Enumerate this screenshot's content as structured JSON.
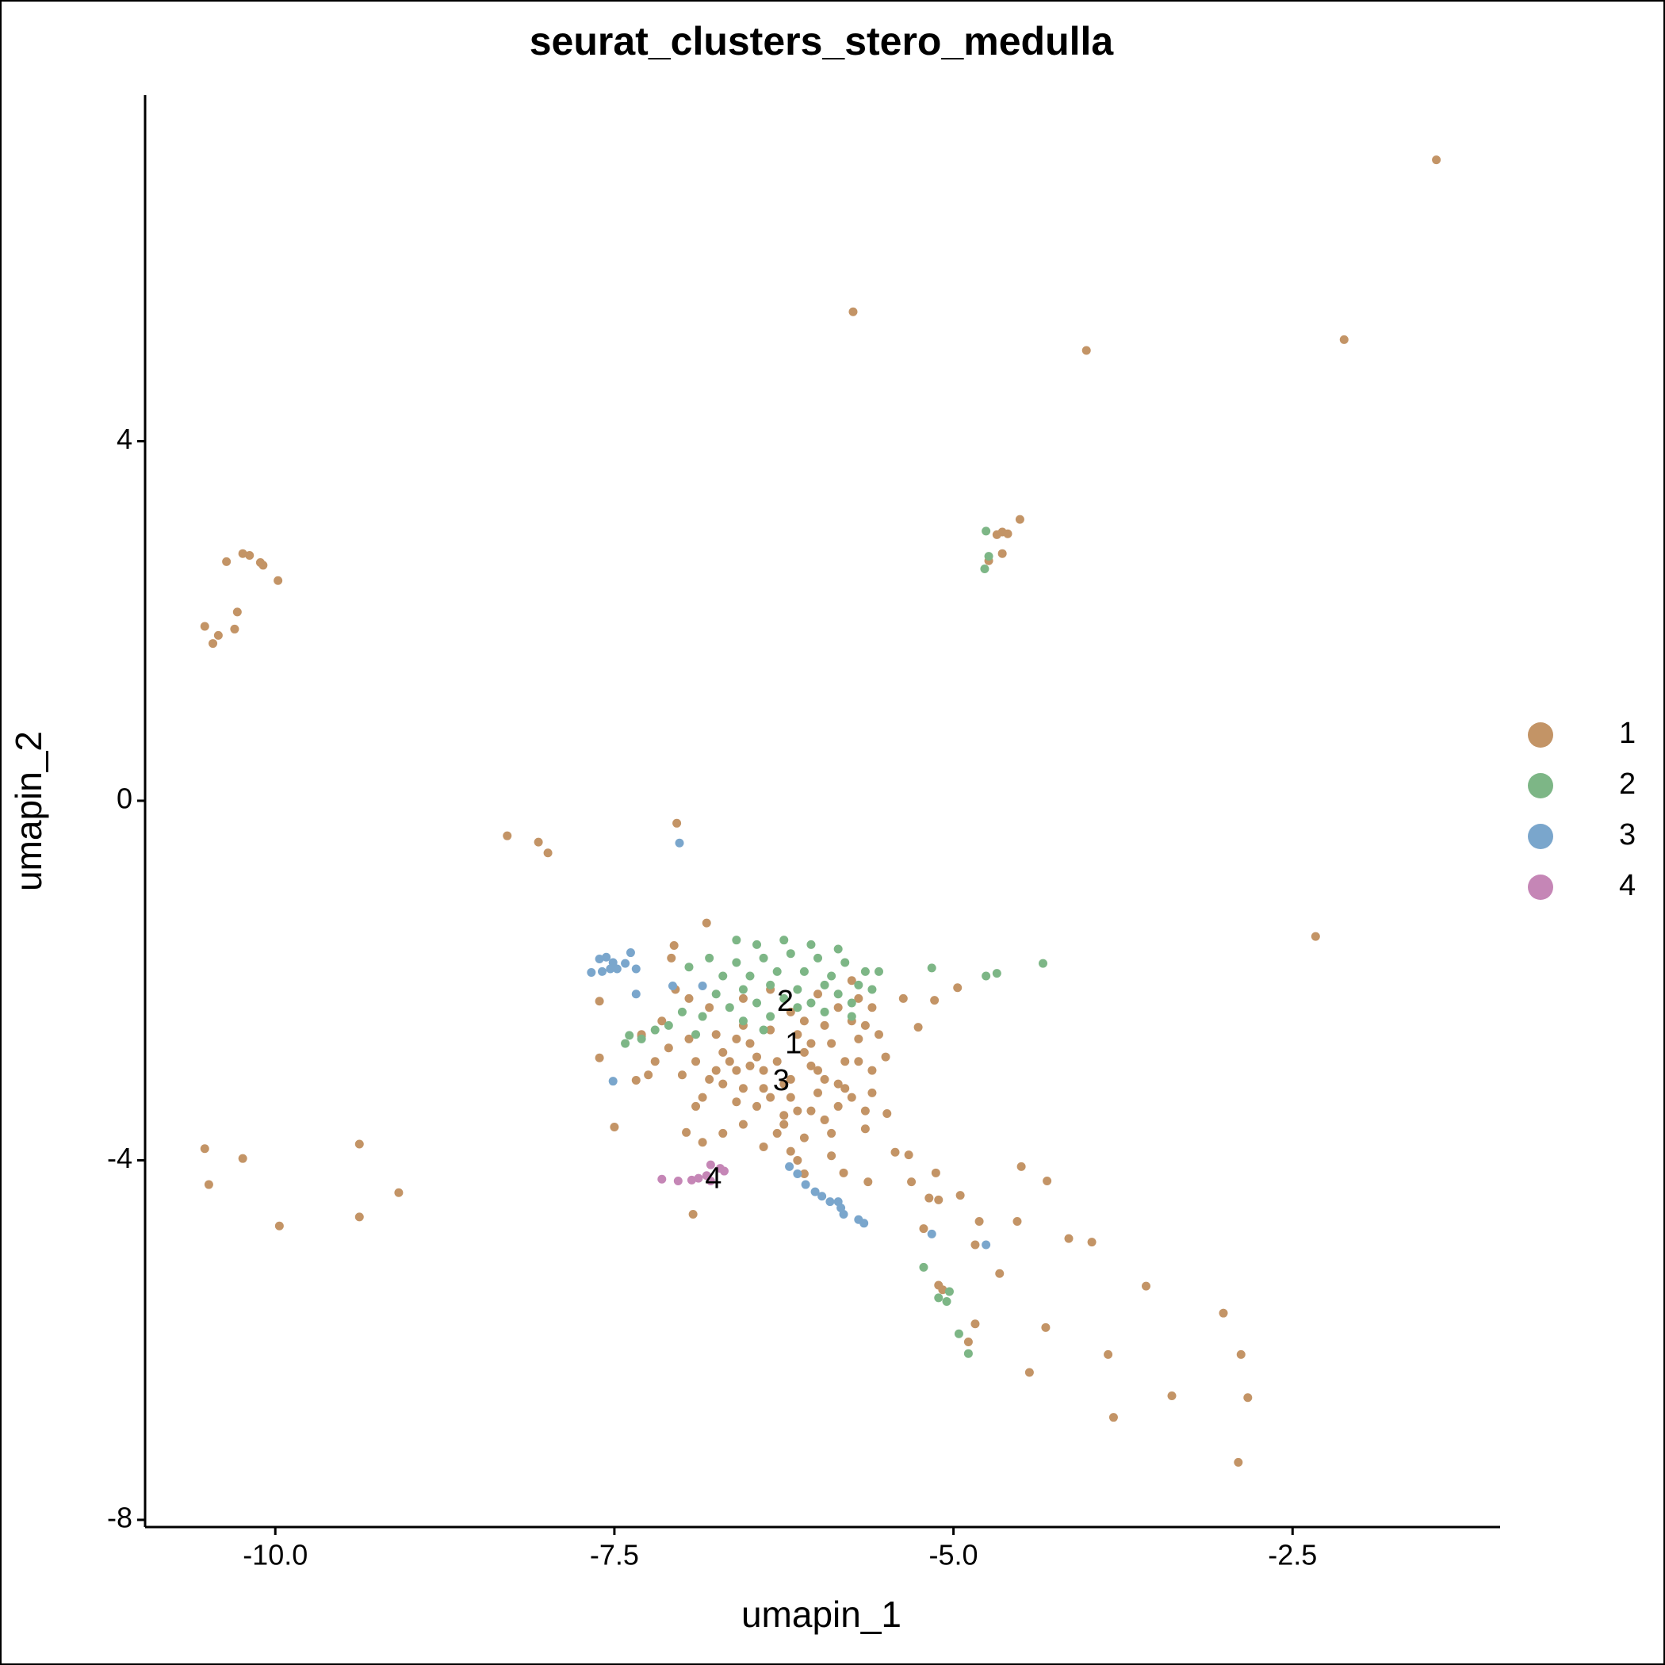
{
  "chart_data": {
    "type": "scatter",
    "title": "seurat_clusters_stero_medulla",
    "xlabel": "umapin_1",
    "ylabel": "umapin_2",
    "xlim": [
      -10.96,
      -0.97
    ],
    "ylim": [
      -8.08,
      7.85
    ],
    "xticks": [
      {
        "value": -10,
        "label": "-10.0"
      },
      -7.5,
      {
        "value": -5,
        "label": "-5.0"
      },
      -2.5
    ],
    "yticks": [
      -8,
      -4,
      0,
      4
    ],
    "legend": "right",
    "labels": [
      {
        "text": "2",
        "x": -6.24,
        "y": -2.25
      },
      {
        "text": "1",
        "x": -6.18,
        "y": -2.72
      },
      {
        "text": "3",
        "x": -6.27,
        "y": -3.13
      },
      {
        "text": "4",
        "x": -6.77,
        "y": -4.22
      }
    ],
    "series": [
      {
        "name": "1",
        "color": "#C39466",
        "points": [
          [
            -1.44,
            7.13
          ],
          [
            -5.74,
            5.44
          ],
          [
            -4.02,
            5.01
          ],
          [
            -2.12,
            5.13
          ],
          [
            -4.51,
            3.13
          ],
          [
            -4.64,
            2.99
          ],
          [
            -4.6,
            2.97
          ],
          [
            -4.64,
            2.75
          ],
          [
            -4.74,
            2.67
          ],
          [
            -4.68,
            2.96
          ],
          [
            -10.36,
            2.66
          ],
          [
            -10.24,
            2.75
          ],
          [
            -10.19,
            2.73
          ],
          [
            -10.11,
            2.65
          ],
          [
            -10.09,
            2.62
          ],
          [
            -9.98,
            2.45
          ],
          [
            -10.28,
            2.1
          ],
          [
            -10.3,
            1.91
          ],
          [
            -10.52,
            1.94
          ],
          [
            -10.42,
            1.84
          ],
          [
            -10.46,
            1.75
          ],
          [
            -8.29,
            -0.39
          ],
          [
            -8.06,
            -0.46
          ],
          [
            -7.99,
            -0.58
          ],
          [
            -7.04,
            -0.25
          ],
          [
            -2.33,
            -1.51
          ],
          [
            -10.52,
            -3.87
          ],
          [
            -10.49,
            -4.27
          ],
          [
            -10.24,
            -3.98
          ],
          [
            -9.38,
            -3.82
          ],
          [
            -9.38,
            -4.63
          ],
          [
            -9.09,
            -4.36
          ],
          [
            -9.97,
            -4.73
          ],
          [
            -5.49,
            -3.48
          ],
          [
            -5.43,
            -3.91
          ],
          [
            -5.33,
            -3.94
          ],
          [
            -5.31,
            -4.24
          ],
          [
            -5.13,
            -4.14
          ],
          [
            -5.18,
            -4.42
          ],
          [
            -5.11,
            -4.44
          ],
          [
            -4.95,
            -4.39
          ],
          [
            -4.5,
            -4.07
          ],
          [
            -4.31,
            -4.23
          ],
          [
            -4.81,
            -4.68
          ],
          [
            -4.53,
            -4.68
          ],
          [
            -5.22,
            -4.76
          ],
          [
            -4.84,
            -4.94
          ],
          [
            -4.66,
            -5.26
          ],
          [
            -4.15,
            -4.87
          ],
          [
            -3.98,
            -4.91
          ],
          [
            -5.11,
            -5.39
          ],
          [
            -5.08,
            -5.44
          ],
          [
            -4.84,
            -5.82
          ],
          [
            -4.89,
            -6.02
          ],
          [
            -4.32,
            -5.86
          ],
          [
            -4.44,
            -6.36
          ],
          [
            -3.58,
            -5.4
          ],
          [
            -3.86,
            -6.16
          ],
          [
            -3.82,
            -6.86
          ],
          [
            -3.39,
            -6.62
          ],
          [
            -3.01,
            -5.7
          ],
          [
            -2.88,
            -6.16
          ],
          [
            -2.83,
            -6.64
          ],
          [
            -2.9,
            -7.36
          ],
          [
            -5.63,
            -4.24
          ],
          [
            -5.81,
            -4.14
          ],
          [
            -6.92,
            -4.6
          ],
          [
            -6.97,
            -3.69
          ],
          [
            -7.5,
            -3.63
          ],
          [
            -7.34,
            -3.11
          ],
          [
            -7.61,
            -2.86
          ],
          [
            -7.61,
            -2.23
          ],
          [
            -7.3,
            -2.62
          ],
          [
            -5.26,
            -2.52
          ],
          [
            -5.37,
            -2.2
          ],
          [
            -5.14,
            -2.22
          ],
          [
            -4.97,
            -2.08
          ],
          [
            -7.06,
            -1.61
          ],
          [
            -6.82,
            -1.36
          ],
          [
            -7.08,
            -1.75
          ],
          [
            -6.9,
            -2.9
          ],
          [
            -6.8,
            -3.1
          ],
          [
            -6.7,
            -2.8
          ],
          [
            -6.6,
            -3.0
          ],
          [
            -6.5,
            -2.7
          ],
          [
            -6.4,
            -3.2
          ],
          [
            -6.3,
            -2.9
          ],
          [
            -6.2,
            -3.1
          ],
          [
            -6.1,
            -2.8
          ],
          [
            -6.0,
            -3.0
          ],
          [
            -5.9,
            -2.7
          ],
          [
            -5.8,
            -3.2
          ],
          [
            -5.7,
            -2.9
          ],
          [
            -5.6,
            -3.0
          ],
          [
            -6.45,
            -3.4
          ],
          [
            -6.25,
            -3.5
          ],
          [
            -6.05,
            -3.45
          ],
          [
            -5.85,
            -3.4
          ],
          [
            -6.35,
            -2.55
          ],
          [
            -6.15,
            -2.6
          ],
          [
            -5.95,
            -2.5
          ],
          [
            -5.75,
            -2.45
          ],
          [
            -6.55,
            -2.5
          ],
          [
            -6.75,
            -2.6
          ],
          [
            -6.95,
            -2.65
          ],
          [
            -7.1,
            -2.75
          ],
          [
            -7.0,
            -3.05
          ],
          [
            -6.85,
            -3.3
          ],
          [
            -6.6,
            -3.35
          ],
          [
            -5.55,
            -2.6
          ],
          [
            -5.6,
            -2.3
          ],
          [
            -5.7,
            -2.2
          ],
          [
            -5.65,
            -3.45
          ],
          [
            -5.9,
            -3.7
          ],
          [
            -6.1,
            -3.75
          ],
          [
            -6.3,
            -3.7
          ],
          [
            -6.2,
            -3.9
          ],
          [
            -6.25,
            -3.6
          ],
          [
            -6.55,
            -3.6
          ],
          [
            -6.7,
            -3.7
          ],
          [
            -6.85,
            -3.8
          ],
          [
            -6.15,
            -4.0
          ],
          [
            -6.1,
            -4.15
          ],
          [
            -6.2,
            -3.3
          ],
          [
            -6.4,
            -3.0
          ],
          [
            -6.0,
            -3.25
          ],
          [
            -5.8,
            -2.9
          ],
          [
            -6.5,
            -2.95
          ],
          [
            -6.7,
            -3.15
          ],
          [
            -6.9,
            -3.4
          ],
          [
            -7.2,
            -2.9
          ],
          [
            -7.25,
            -3.05
          ],
          [
            -7.3,
            -2.6
          ],
          [
            -7.15,
            -2.45
          ],
          [
            -6.55,
            -2.2
          ],
          [
            -6.35,
            -2.1
          ],
          [
            -6.0,
            -2.15
          ],
          [
            -5.75,
            -2.0
          ],
          [
            -5.85,
            -2.3
          ],
          [
            -6.8,
            -2.3
          ],
          [
            -6.95,
            -2.2
          ],
          [
            -7.05,
            -2.1
          ],
          [
            -6.2,
            -2.35
          ],
          [
            -6.6,
            -2.65
          ],
          [
            -6.05,
            -2.7
          ],
          [
            -5.7,
            -2.65
          ],
          [
            -5.5,
            -2.85
          ],
          [
            -5.6,
            -3.25
          ],
          [
            -5.65,
            -3.65
          ],
          [
            -5.9,
            -3.95
          ],
          [
            -5.95,
            -3.55
          ],
          [
            -6.4,
            -3.85
          ],
          [
            -6.45,
            -2.85
          ],
          [
            -6.25,
            -3.15
          ],
          [
            -6.05,
            -2.95
          ],
          [
            -5.85,
            -3.15
          ],
          [
            -6.65,
            -2.9
          ],
          [
            -6.35,
            -3.3
          ],
          [
            -6.15,
            -3.45
          ],
          [
            -5.95,
            -3.1
          ],
          [
            -5.75,
            -3.3
          ],
          [
            -6.75,
            -3.0
          ],
          [
            -6.55,
            -3.2
          ],
          [
            -6.1,
            -2.45
          ],
          [
            -5.65,
            -2.5
          ]
        ]
      },
      {
        "name": "2",
        "color": "#7DB686",
        "points": [
          [
            -4.76,
            3.0
          ],
          [
            -4.74,
            2.72
          ],
          [
            -4.77,
            2.58
          ],
          [
            -4.34,
            -1.81
          ],
          [
            -4.68,
            -1.92
          ],
          [
            -4.76,
            -1.95
          ],
          [
            -5.16,
            -1.86
          ],
          [
            -5.22,
            -5.19
          ],
          [
            -5.11,
            -5.53
          ],
          [
            -5.05,
            -5.57
          ],
          [
            -5.03,
            -5.46
          ],
          [
            -4.96,
            -5.93
          ],
          [
            -4.89,
            -6.15
          ],
          [
            -7.39,
            -2.61
          ],
          [
            -6.6,
            -1.8
          ],
          [
            -6.4,
            -1.75
          ],
          [
            -6.2,
            -1.7
          ],
          [
            -6.0,
            -1.75
          ],
          [
            -5.8,
            -1.8
          ],
          [
            -5.65,
            -1.9
          ],
          [
            -6.7,
            -1.95
          ],
          [
            -6.5,
            -1.95
          ],
          [
            -6.3,
            -1.9
          ],
          [
            -6.1,
            -1.9
          ],
          [
            -5.9,
            -1.95
          ],
          [
            -5.7,
            -2.05
          ],
          [
            -6.75,
            -2.15
          ],
          [
            -6.55,
            -2.1
          ],
          [
            -6.35,
            -2.05
          ],
          [
            -6.15,
            -2.1
          ],
          [
            -5.95,
            -2.05
          ],
          [
            -5.75,
            -2.25
          ],
          [
            -6.65,
            -2.3
          ],
          [
            -6.45,
            -2.25
          ],
          [
            -6.25,
            -2.2
          ],
          [
            -6.05,
            -2.25
          ],
          [
            -5.85,
            -2.15
          ],
          [
            -6.55,
            -2.45
          ],
          [
            -6.35,
            -2.4
          ],
          [
            -6.15,
            -2.3
          ],
          [
            -5.95,
            -2.35
          ],
          [
            -6.8,
            -1.75
          ],
          [
            -6.85,
            -2.4
          ],
          [
            -6.9,
            -2.6
          ],
          [
            -7.0,
            -2.35
          ],
          [
            -7.1,
            -2.5
          ],
          [
            -7.2,
            -2.55
          ],
          [
            -7.3,
            -2.65
          ],
          [
            -7.42,
            -2.7
          ],
          [
            -6.45,
            -1.6
          ],
          [
            -6.6,
            -1.55
          ],
          [
            -6.05,
            -1.6
          ],
          [
            -5.85,
            -1.65
          ],
          [
            -5.6,
            -2.1
          ],
          [
            -5.55,
            -1.9
          ],
          [
            -5.75,
            -2.4
          ],
          [
            -6.95,
            -1.85
          ],
          [
            -6.25,
            -1.55
          ],
          [
            -6.4,
            -2.55
          ]
        ]
      },
      {
        "name": "3",
        "color": "#7AA6CC",
        "points": [
          [
            -7.61,
            -1.76
          ],
          [
            -7.56,
            -1.74
          ],
          [
            -7.51,
            -1.8
          ],
          [
            -7.48,
            -1.87
          ],
          [
            -7.42,
            -1.81
          ],
          [
            -7.38,
            -1.69
          ],
          [
            -7.34,
            -1.87
          ],
          [
            -7.67,
            -1.91
          ],
          [
            -7.59,
            -1.9
          ],
          [
            -7.53,
            -1.87
          ],
          [
            -7.34,
            -2.15
          ],
          [
            -7.51,
            -3.12
          ],
          [
            -7.02,
            -0.47
          ],
          [
            -7.07,
            -2.06
          ],
          [
            -6.85,
            -2.06
          ],
          [
            -6.21,
            -4.07
          ],
          [
            -6.15,
            -4.15
          ],
          [
            -6.09,
            -4.27
          ],
          [
            -6.02,
            -4.35
          ],
          [
            -5.97,
            -4.4
          ],
          [
            -5.91,
            -4.46
          ],
          [
            -5.85,
            -4.46
          ],
          [
            -5.83,
            -4.53
          ],
          [
            -5.81,
            -4.6
          ],
          [
            -5.7,
            -4.66
          ],
          [
            -5.66,
            -4.7
          ],
          [
            -5.16,
            -4.82
          ],
          [
            -4.76,
            -4.94
          ]
        ]
      },
      {
        "name": "4",
        "color": "#C586B6",
        "points": [
          [
            -7.15,
            -4.21
          ],
          [
            -7.03,
            -4.23
          ],
          [
            -6.93,
            -4.22
          ],
          [
            -6.88,
            -4.2
          ],
          [
            -6.82,
            -4.17
          ],
          [
            -6.79,
            -4.05
          ],
          [
            -6.72,
            -4.09
          ],
          [
            -6.69,
            -4.12
          ],
          [
            -6.79,
            -4.23
          ]
        ]
      }
    ]
  }
}
